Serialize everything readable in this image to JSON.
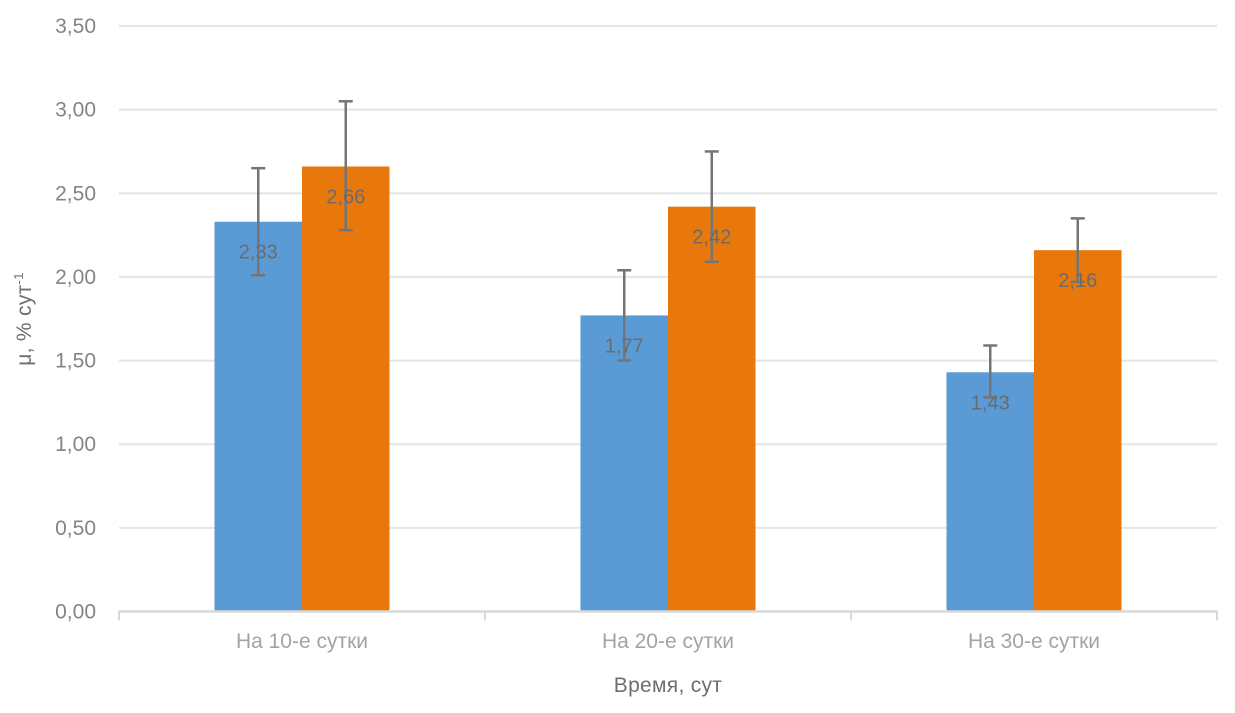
{
  "chart_data": {
    "type": "bar",
    "title": "",
    "xlabel": "Время, сут",
    "ylabel": "μ, % сут⁻¹",
    "ylabel_base": "μ, % сут",
    "ylabel_sup": "-1",
    "categories": [
      "На 10-е сутки",
      "На 20-е сутки",
      "На 30-е сутки"
    ],
    "series": [
      {
        "name": "blue-series",
        "color": "#5B9BD5",
        "values": [
          2.33,
          1.77,
          1.43
        ],
        "labels": [
          "2,33",
          "1,77",
          "1,43"
        ],
        "error_plus": [
          0.32,
          0.27,
          0.16
        ],
        "error_minus": [
          0.32,
          0.27,
          0.15
        ]
      },
      {
        "name": "orange-series",
        "color": "#E8770C",
        "values": [
          2.66,
          2.42,
          2.16
        ],
        "labels": [
          "2,66",
          "2,42",
          "2,16"
        ],
        "error_plus": [
          0.39,
          0.33,
          0.19
        ],
        "error_minus": [
          0.38,
          0.33,
          0.19
        ]
      }
    ],
    "ylim": [
      0,
      3.5
    ],
    "ytick_step": 0.5,
    "ytick_labels": [
      "0,00",
      "0,50",
      "1,00",
      "1,50",
      "2,00",
      "2,50",
      "3,00",
      "3,50"
    ],
    "grid": true,
    "legend": "none",
    "error_bars": true,
    "colors": {
      "gridline": "#E5E5E5",
      "axis_line": "#D9D9D9",
      "error_bar": "#757575",
      "tick_label": "#848484",
      "category_label": "#A3A3A3",
      "axis_title": "#6E6E6E",
      "data_label": "#6B6B6B",
      "background": "#FFFFFF"
    }
  }
}
